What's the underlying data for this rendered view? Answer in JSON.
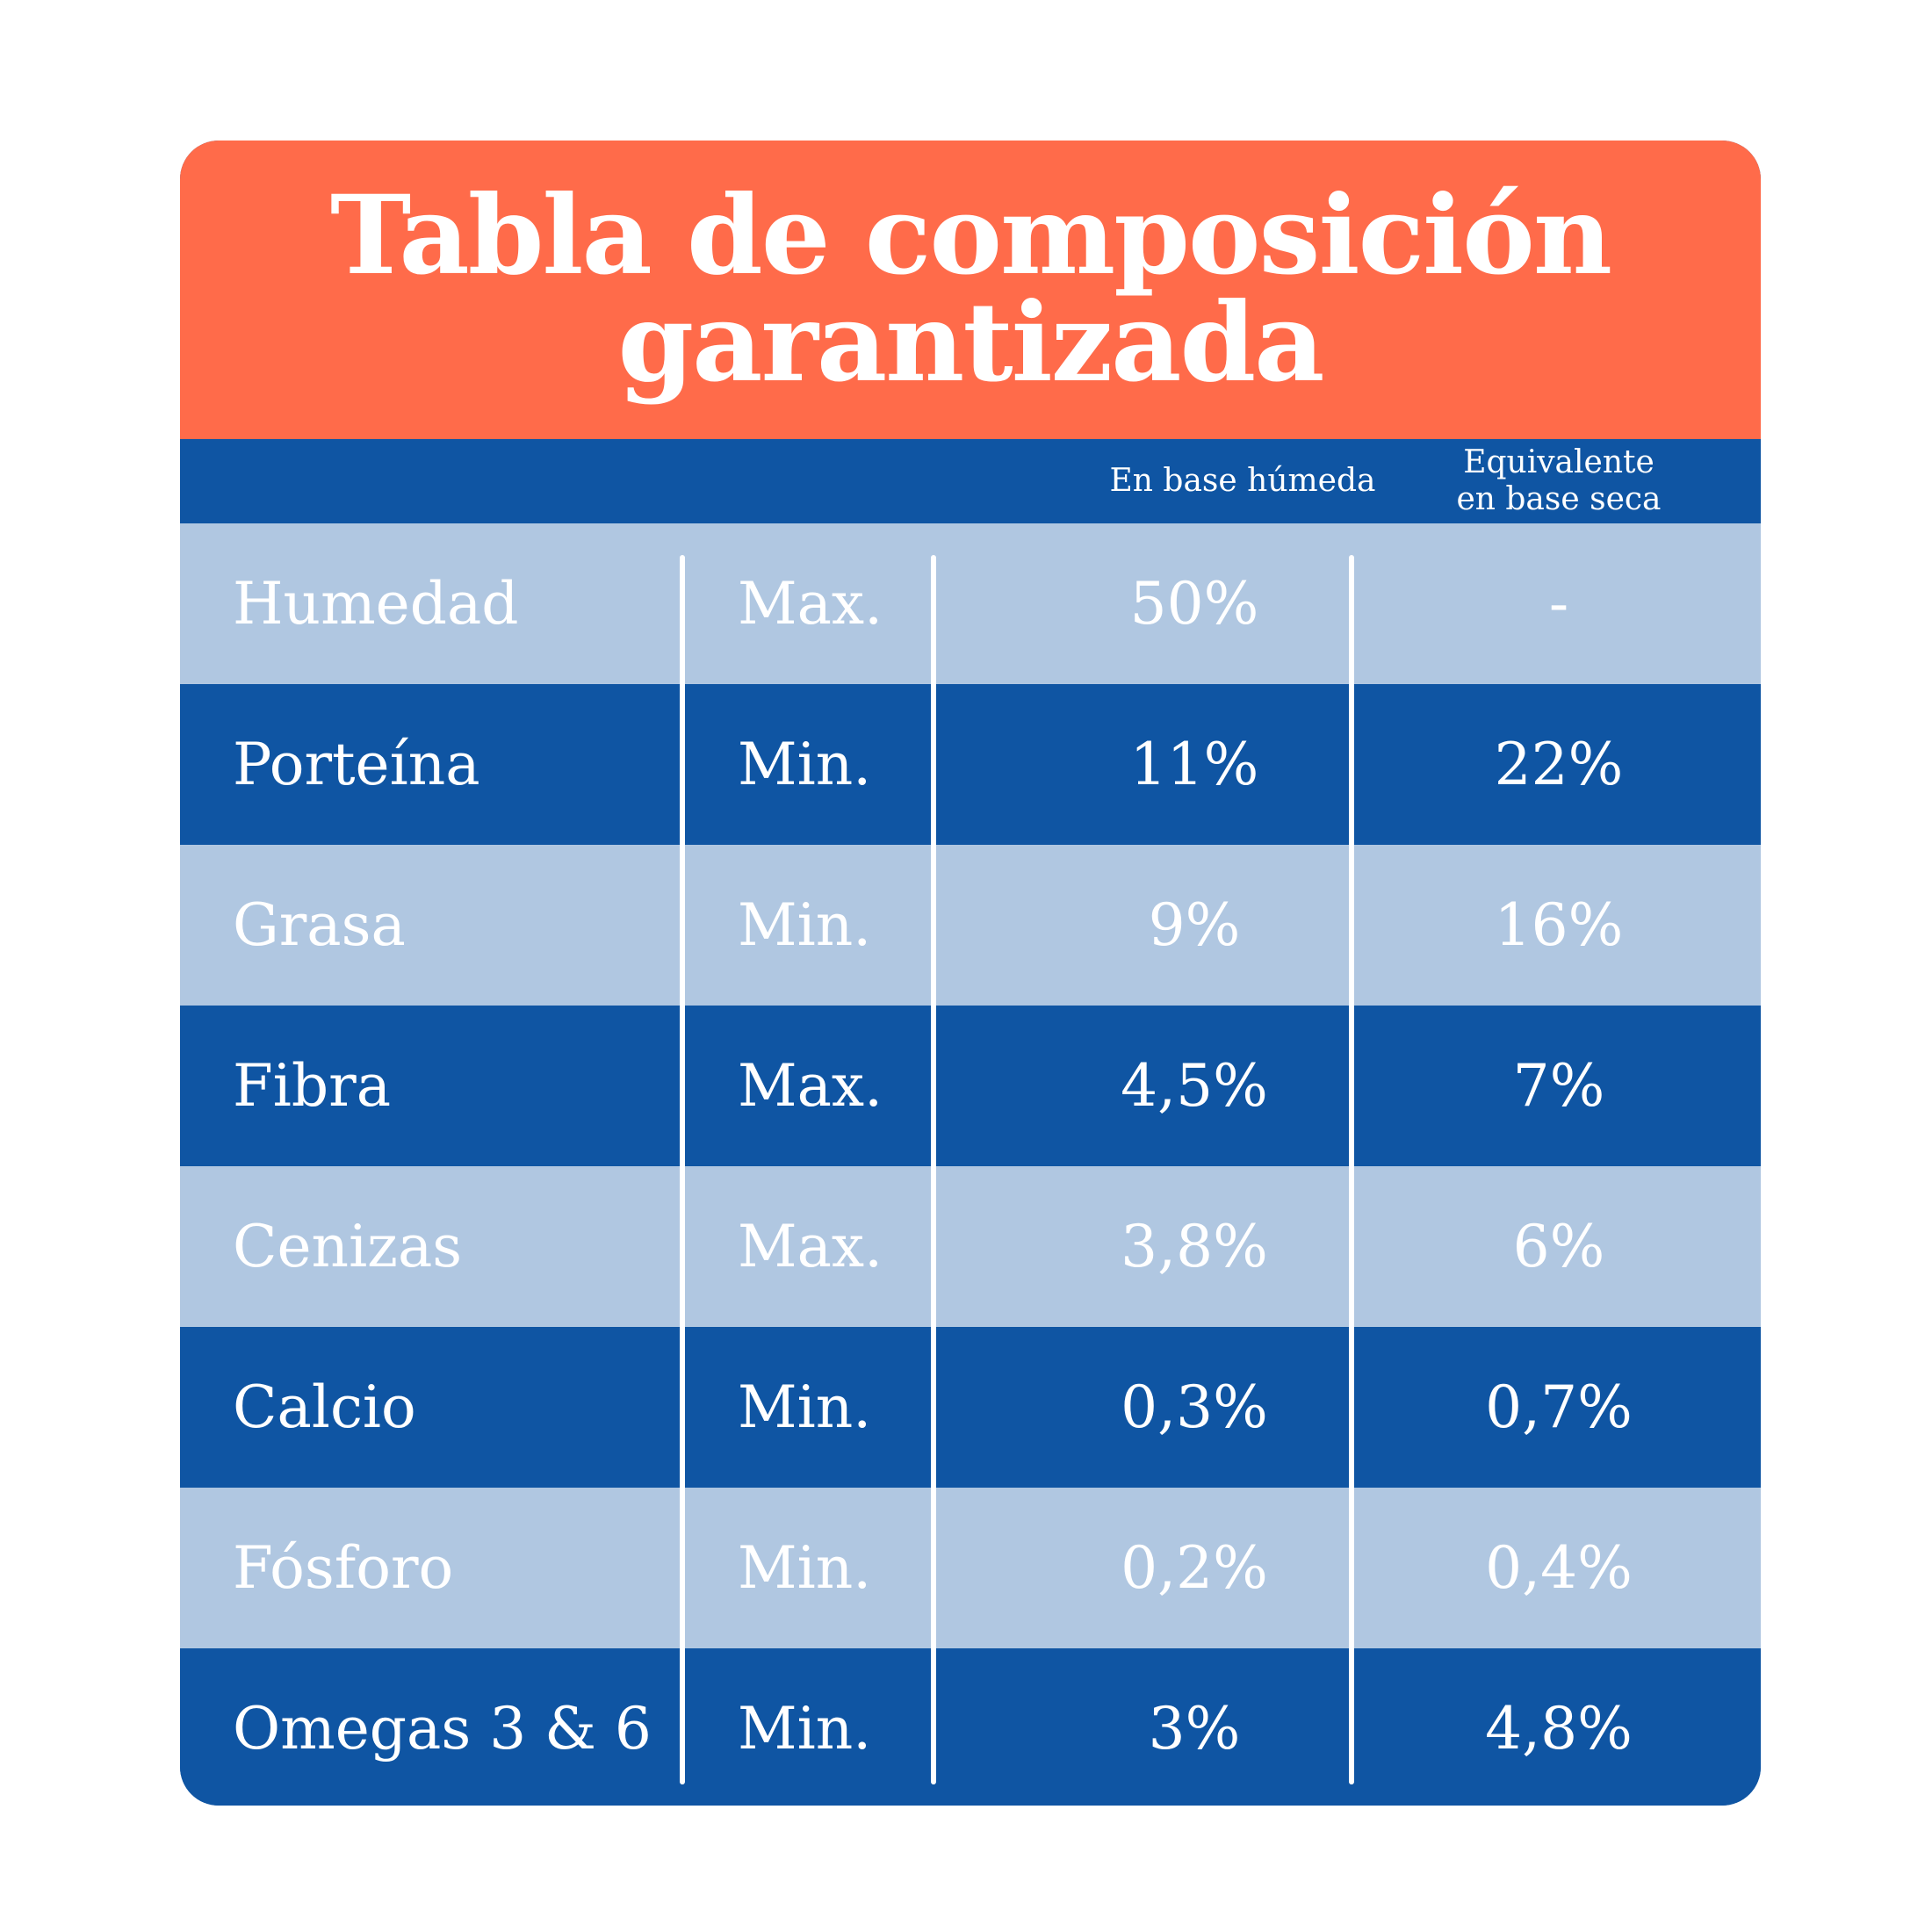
{
  "header": {
    "title_line1": "Tabla de composición",
    "title_line2": "garantizada"
  },
  "columns": {
    "wet": "En base húmeda",
    "dry_line1": "Equivalente",
    "dry_line2": "en base seca"
  },
  "rows": [
    {
      "name": "Humedad",
      "limit": "Max.",
      "wet": "50%",
      "dry": "-"
    },
    {
      "name": "Porteína",
      "limit": "Min.",
      "wet": "11%",
      "dry": "22%"
    },
    {
      "name": "Grasa",
      "limit": "Min.",
      "wet": "9%",
      "dry": "16%"
    },
    {
      "name": "Fibra",
      "limit": "Max.",
      "wet": "4,5%",
      "dry": "7%"
    },
    {
      "name": "Cenizas",
      "limit": "Max.",
      "wet": "3,8%",
      "dry": "6%"
    },
    {
      "name": "Calcio",
      "limit": "Min.",
      "wet": "0,3%",
      "dry": "0,7%"
    },
    {
      "name": "Fósforo",
      "limit": "Min.",
      "wet": "0,2%",
      "dry": "0,4%"
    },
    {
      "name": "Omegas 3 & 6",
      "limit": "Min.",
      "wet": "3%",
      "dry": "4,8%"
    }
  ],
  "colors": {
    "header_bg": "#ff6b4a",
    "dark_row": "#0f55a3",
    "light_row": "#b0c7e1",
    "text": "#ffffff"
  }
}
